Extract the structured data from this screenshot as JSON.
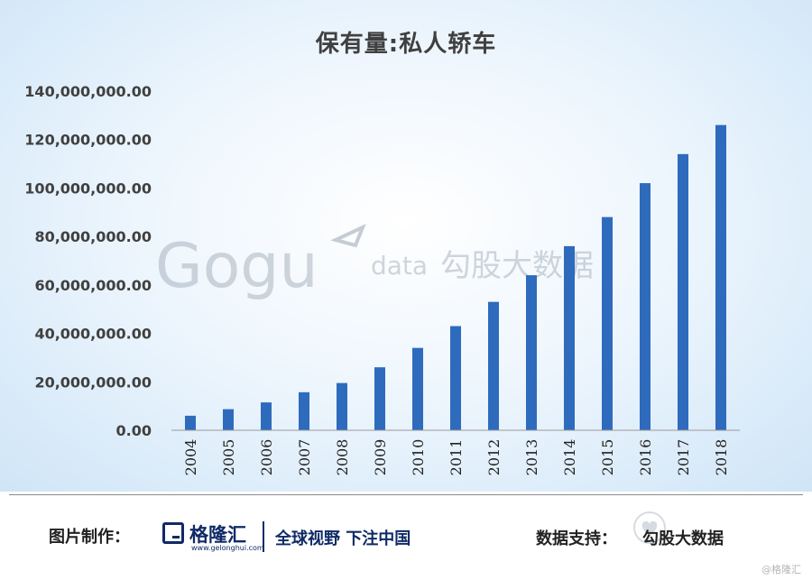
{
  "chart_data": {
    "type": "bar",
    "title": "保有量:私人轿车",
    "categories": [
      "2004",
      "2005",
      "2006",
      "2007",
      "2008",
      "2009",
      "2010",
      "2011",
      "2012",
      "2013",
      "2014",
      "2015",
      "2016",
      "2017",
      "2018"
    ],
    "values": [
      6000000,
      8700000,
      11500000,
      15700000,
      19500000,
      26000000,
      34000000,
      43000000,
      53000000,
      64000000,
      76000000,
      88000000,
      102000000,
      114000000,
      126000000
    ],
    "ylim": [
      0,
      140000000
    ],
    "yticks": [
      0,
      20000000,
      40000000,
      60000000,
      80000000,
      100000000,
      120000000,
      140000000
    ],
    "ytick_labels": [
      "0.00",
      "20,000,000.00",
      "40,000,000.00",
      "60,000,000.00",
      "80,000,000.00",
      "100,000,000.00",
      "120,000,000.00",
      "140,000,000.00"
    ],
    "bar_color": "#2e6bbd",
    "grid": false,
    "legend": "none"
  },
  "watermark": {
    "logo_text": "Gogu",
    "data_text": "data",
    "cn_text": "勾股大数据"
  },
  "footer": {
    "made_by_label": "图片制作：",
    "logo_name": "格隆汇",
    "logo_url": "www.gelonghui.com",
    "slogan": "全球视野 下注中国",
    "support_label": "数据支持：",
    "support_name": "勾股大数据",
    "corner_mark": "@格隆汇"
  },
  "colors": {
    "logo_navy": "#0f2a66"
  }
}
